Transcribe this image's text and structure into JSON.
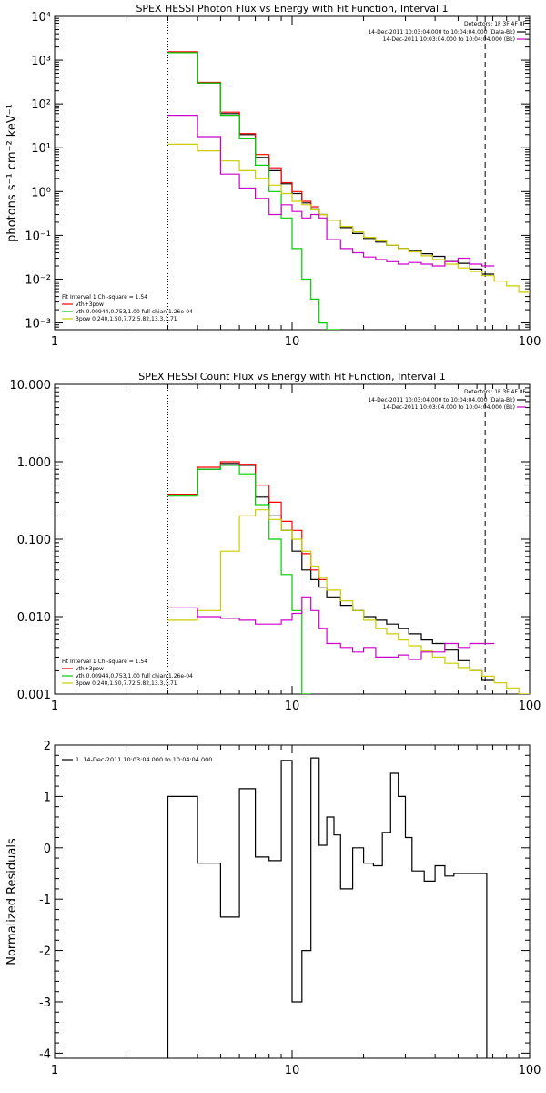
{
  "chart_data": [
    {
      "type": "line",
      "title": "SPEX HESSI Photon Flux vs Energy with Fit Function, Interval 1",
      "ylabel": "photons s⁻¹ cm⁻² keV⁻¹",
      "xlabel": "",
      "xscale": "log",
      "yscale": "log",
      "xlim": [
        1,
        100
      ],
      "ylim": [
        0.0007,
        10000
      ],
      "xticks": [
        {
          "v": 1,
          "label": "1"
        },
        {
          "v": 10,
          "label": "10"
        },
        {
          "v": 100,
          "label": "100"
        }
      ],
      "yticks": [
        {
          "v": 0.001,
          "label": "10⁻³"
        },
        {
          "v": 0.01,
          "label": "10⁻²"
        },
        {
          "v": 0.1,
          "label": "10⁻¹"
        },
        {
          "v": 1,
          "label": "10⁰"
        },
        {
          "v": 10,
          "label": "10¹"
        },
        {
          "v": 100,
          "label": "10²"
        },
        {
          "v": 1000,
          "label": "10³"
        },
        {
          "v": 10000,
          "label": "10⁴"
        }
      ],
      "vlines": [
        {
          "x": 3,
          "style": "dotted"
        },
        {
          "x": 65,
          "style": "dashed"
        }
      ],
      "legend_right": {
        "header": "Detectors: 1F 3F 4F 8F",
        "entries": [
          {
            "text": "14-Dec-2011 10:03:04.000 to 10:04:04.000 (Data-Bk)",
            "color": "#000000"
          },
          {
            "text": "14-Dec-2011 10:03:04.000 to 10:04:04.000 (Bk)",
            "color": "#cc00cc"
          }
        ]
      },
      "legend_left": {
        "header": "Fit Interval 1    Chi-square = 1.54",
        "entries": [
          {
            "text": "vth+3pow",
            "color": "#ff0000"
          },
          {
            "text": "vth 0.00944,0.753,1.00   full chian 1.26e-04",
            "color": "#00cc00"
          },
          {
            "text": "3pow 0.240,1.50,7.72,5.82,13.3,1.71",
            "color": "#cccc00"
          }
        ]
      },
      "bin_edges": [
        3,
        4,
        5,
        6,
        7,
        8,
        9,
        10,
        11,
        12,
        13,
        14,
        16,
        18,
        20,
        22.5,
        25,
        28,
        31,
        35,
        39,
        44,
        50,
        56,
        63,
        71,
        80,
        90,
        100
      ],
      "series": [
        {
          "name": "data",
          "color": "#000000",
          "start": 0,
          "values": [
            1500,
            300,
            60,
            20,
            6,
            3,
            1.5,
            0.9,
            0.55,
            0.4,
            0.3,
            0.22,
            0.15,
            0.11,
            0.085,
            0.07,
            0.06,
            0.05,
            0.045,
            0.038,
            0.033,
            0.027,
            0.023,
            0.017,
            0.013
          ]
        },
        {
          "name": "vth+3pow",
          "color": "#ff0000",
          "start": 0,
          "values": [
            1550,
            310,
            65,
            21,
            7,
            3.5,
            1.6,
            1.0,
            0.6,
            0.45
          ]
        },
        {
          "name": "vth",
          "color": "#00cc00",
          "start": 0,
          "values": [
            1480,
            300,
            55,
            16,
            4,
            1.0,
            0.25,
            0.05,
            0.01,
            0.0035,
            0.001,
            0.0007
          ]
        },
        {
          "name": "3pow",
          "color": "#cccc00",
          "start": 0,
          "values": [
            12,
            8.5,
            5,
            3,
            2,
            1.4,
            0.9,
            0.6,
            0.5,
            0.38,
            0.3,
            0.22,
            0.16,
            0.12,
            0.09,
            0.075,
            0.06,
            0.05,
            0.042,
            0.034,
            0.028,
            0.022,
            0.018,
            0.015,
            0.012,
            0.009,
            0.007,
            0.005
          ]
        },
        {
          "name": "background",
          "color": "#cc00cc",
          "start": 0,
          "values": [
            55,
            18,
            2.5,
            1.2,
            0.7,
            0.3,
            0.5,
            0.35,
            0.25,
            0.3,
            0.25,
            0.08,
            0.05,
            0.04,
            0.032,
            0.028,
            0.025,
            0.022,
            0.024,
            0.022,
            0.02,
            0.025,
            0.03,
            0.022,
            0.02
          ]
        }
      ]
    },
    {
      "type": "line",
      "title": "SPEX HESSI Count Flux vs Energy with Fit Function, Interval 1",
      "ylabel": "",
      "xlabel": "",
      "xscale": "log",
      "yscale": "log",
      "xlim": [
        1,
        100
      ],
      "ylim": [
        0.001,
        10
      ],
      "xticks": [
        {
          "v": 1,
          "label": "1"
        },
        {
          "v": 10,
          "label": "10"
        },
        {
          "v": 100,
          "label": "100"
        }
      ],
      "yticks": [
        {
          "v": 0.001,
          "label": "0.001"
        },
        {
          "v": 0.01,
          "label": "0.010"
        },
        {
          "v": 0.1,
          "label": "0.100"
        },
        {
          "v": 1,
          "label": "1.000"
        },
        {
          "v": 10,
          "label": "10.000"
        }
      ],
      "vlines": [
        {
          "x": 3,
          "style": "dotted"
        },
        {
          "x": 65,
          "style": "dashed"
        }
      ],
      "legend_right": {
        "header": "Detectors: 1F 3F 4F 8F",
        "entries": [
          {
            "text": "14-Dec-2011 10:03:04.000 to 10:04:04.000 (Data-Bk)",
            "color": "#000000"
          },
          {
            "text": "14-Dec-2011 10:03:04.000 to 10:04:04.000 (Bk)",
            "color": "#cc00cc"
          }
        ]
      },
      "legend_left": {
        "header": "Fit Interval 1    Chi-square = 1.54",
        "entries": [
          {
            "text": "vth+3pow",
            "color": "#ff0000"
          },
          {
            "text": "vth 0.00944,0.753,1.00   full chian 1.26e-04",
            "color": "#00cc00"
          },
          {
            "text": "3pow 0.240,1.50,7.72,5.82,13.3,1.71",
            "color": "#cccc00"
          }
        ]
      },
      "bin_edges": [
        3,
        4,
        5,
        6,
        7,
        8,
        9,
        10,
        11,
        12,
        13,
        14,
        16,
        18,
        20,
        22.5,
        25,
        28,
        31,
        35,
        39,
        44,
        50,
        56,
        63,
        71,
        80,
        90,
        100
      ],
      "series": [
        {
          "name": "data",
          "color": "#000000",
          "start": 0,
          "values": [
            0.38,
            0.8,
            0.95,
            0.9,
            0.35,
            0.2,
            0.13,
            0.07,
            0.04,
            0.03,
            0.024,
            0.018,
            0.014,
            0.012,
            0.01,
            0.009,
            0.008,
            0.007,
            0.006,
            0.005,
            0.0045,
            0.0037,
            0.0027,
            0.002,
            0.0015
          ]
        },
        {
          "name": "vth+3pow",
          "color": "#ff0000",
          "start": 0,
          "values": [
            0.38,
            0.85,
            1.0,
            0.93,
            0.5,
            0.3,
            0.17,
            0.13,
            0.065,
            0.04,
            0.03
          ]
        },
        {
          "name": "vth",
          "color": "#00cc00",
          "start": 0,
          "values": [
            0.36,
            0.8,
            0.9,
            0.7,
            0.28,
            0.1,
            0.035,
            0.012,
            0.001
          ]
        },
        {
          "name": "3pow",
          "color": "#cccc00",
          "start": 0,
          "values": [
            0.009,
            0.012,
            0.07,
            0.2,
            0.24,
            0.18,
            0.13,
            0.1,
            0.07,
            0.045,
            0.032,
            0.022,
            0.016,
            0.012,
            0.009,
            0.007,
            0.006,
            0.005,
            0.0042,
            0.0036,
            0.003,
            0.0025,
            0.0022,
            0.002,
            0.0017,
            0.0014,
            0.0012,
            0.001
          ]
        },
        {
          "name": "background",
          "color": "#cc00cc",
          "start": 0,
          "values": [
            0.013,
            0.01,
            0.0095,
            0.009,
            0.008,
            0.008,
            0.009,
            0.011,
            0.018,
            0.012,
            0.007,
            0.0045,
            0.004,
            0.0035,
            0.004,
            0.003,
            0.003,
            0.0032,
            0.0028,
            0.0035,
            0.0035,
            0.0045,
            0.004,
            0.0045,
            0.0045
          ]
        }
      ]
    },
    {
      "type": "line",
      "title": "",
      "ylabel": "Normalized Residuals",
      "xlabel": "",
      "xscale": "log",
      "yscale": "linear",
      "xlim": [
        1,
        100
      ],
      "ylim": [
        -4.1,
        2.0
      ],
      "xticks": [
        {
          "v": 1,
          "label": "1"
        },
        {
          "v": 10,
          "label": "10"
        },
        {
          "v": 100,
          "label": "100"
        }
      ],
      "yticks": [
        {
          "v": -4,
          "label": "-4"
        },
        {
          "v": -3,
          "label": "-3"
        },
        {
          "v": -2,
          "label": "-2"
        },
        {
          "v": -1,
          "label": "-1"
        },
        {
          "v": 0,
          "label": "0"
        },
        {
          "v": 1,
          "label": "1"
        },
        {
          "v": 2,
          "label": "2"
        }
      ],
      "vlines": [],
      "legend_left": {
        "header": "",
        "entries": [
          {
            "text": "1. 14-Dec-2011 10:03:04.000 to 10:04:04.000",
            "color": "#000000"
          }
        ]
      },
      "bin_edges": [
        3,
        3.5,
        4,
        4.5,
        5,
        5.5,
        6,
        6.5,
        7,
        7.5,
        8,
        8.5,
        9,
        9.5,
        10,
        10.5,
        11,
        11.5,
        12,
        13,
        14,
        15,
        16,
        17,
        18,
        20,
        22,
        24,
        26,
        28,
        30,
        32,
        34,
        36,
        38,
        40,
        44,
        48,
        52,
        56,
        60,
        66
      ],
      "drop_to_bottom": true,
      "series": [
        {
          "name": "residuals",
          "color": "#000000",
          "start": 0,
          "values": [
            1.0,
            1.0,
            -0.3,
            -0.3,
            -1.35,
            -1.35,
            1.15,
            1.15,
            -0.18,
            -0.18,
            -0.25,
            -0.25,
            1.7,
            1.7,
            -3.0,
            -3.0,
            -2.0,
            -2.0,
            1.75,
            0.05,
            0.6,
            0.25,
            -0.8,
            -0.8,
            0.0,
            -0.3,
            -0.35,
            0.3,
            1.45,
            1.0,
            0.2,
            -0.45,
            -0.45,
            -0.65,
            -0.65,
            -0.35,
            -0.55,
            -0.5,
            -0.5,
            -0.5,
            -0.5
          ]
        }
      ]
    }
  ]
}
